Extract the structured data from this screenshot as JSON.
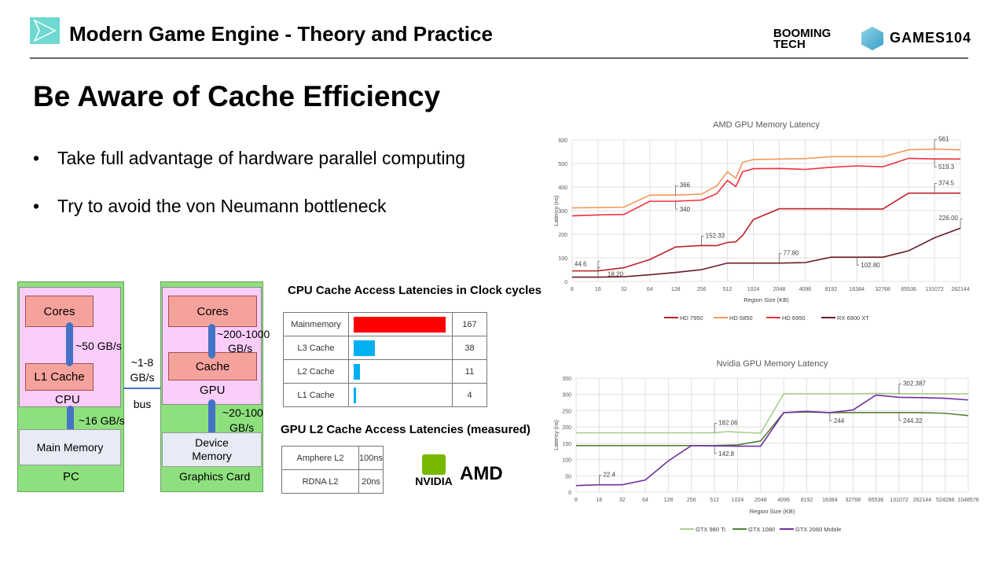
{
  "header": {
    "title": "Modern Game Engine - Theory and Practice",
    "brand_left": "BOOMING TECH",
    "brand_right": "GAMES104"
  },
  "slide": {
    "heading": "Be Aware of Cache Efficiency",
    "bullets": [
      "Take full advantage of hardware parallel computing",
      "Try to avoid the von Neumann bottleneck"
    ]
  },
  "diagram": {
    "pc": {
      "label": "PC",
      "cpu": "CPU",
      "cores": "Cores",
      "l1": "L1 Cache",
      "main_memory": "Main Memory",
      "bw_core_l1": "~50 GB/s",
      "bw_cpu_mem": "~16 GB/s"
    },
    "gpu": {
      "label": "Graphics Card",
      "gpu": "GPU",
      "cores": "Cores",
      "cache": "Cache",
      "device_memory_1": "Device",
      "device_memory_2": "Memory",
      "bw_core_cache_1": "~200-1000",
      "bw_core_cache_2": "GB/s",
      "bw_gpu_mem_1": "~20-100",
      "bw_gpu_mem_2": "GB/s"
    },
    "bus": {
      "bw_1": "~1-8",
      "bw_2": "GB/s",
      "label": "bus"
    }
  },
  "cpu_table": {
    "title": "CPU  Cache Access Latencies in Clock cycles",
    "rows": [
      {
        "name": "Mainmemory",
        "value": 167,
        "color": "#ff0000"
      },
      {
        "name": "L3 Cache",
        "value": 38,
        "color": "#00b0f0"
      },
      {
        "name": "L2 Cache",
        "value": 11,
        "color": "#00b0f0"
      },
      {
        "name": "L1 Cache",
        "value": 4,
        "color": "#00b0f0"
      }
    ]
  },
  "gpu_table": {
    "title": "GPU L2 Cache Access Latencies (measured)",
    "rows": [
      {
        "name": "Amphere L2",
        "value": "100ns"
      },
      {
        "name": "RDNA L2",
        "value": "20ns"
      }
    ]
  },
  "vendor_logos": {
    "nvidia": "NVIDIA",
    "amd": "AMD"
  },
  "chart_data": [
    {
      "type": "line",
      "title": "AMD GPU Memory Latency",
      "xlabel": "Region Size (KB)",
      "ylabel": "Latency (ns)",
      "ylim": [
        0,
        600
      ],
      "yticks": [
        0,
        100,
        200,
        300,
        400,
        500,
        600
      ],
      "categories": [
        "8",
        "16",
        "32",
        "64",
        "128",
        "256",
        "512",
        "1024",
        "2048",
        "4096",
        "8192",
        "16384",
        "32768",
        "65536",
        "131072",
        "262144"
      ],
      "grid": true,
      "legend": "bottom",
      "series": [
        {
          "name": "HD 7950",
          "color": "#c0202a",
          "points": [
            [
              8,
              44.6
            ],
            [
              16,
              44.6
            ],
            [
              32,
              58
            ],
            [
              64,
              93
            ],
            [
              128,
              146
            ],
            [
              256,
              152.33
            ],
            [
              384,
              152
            ],
            [
              512,
              165
            ],
            [
              640,
              168
            ],
            [
              768,
              195
            ],
            [
              1024,
              262
            ],
            [
              2048,
              308
            ],
            [
              4096,
              308
            ],
            [
              8192,
              308
            ],
            [
              16384,
              307
            ],
            [
              32768,
              307
            ],
            [
              65536,
              374.5
            ],
            [
              131072,
              374.5
            ],
            [
              262144,
              374.5
            ]
          ]
        },
        {
          "name": "HD 5850",
          "color": "#f0995a",
          "points": [
            [
              8,
              312
            ],
            [
              16,
              313
            ],
            [
              32,
              315
            ],
            [
              64,
              366
            ],
            [
              128,
              366
            ],
            [
              256,
              370
            ],
            [
              384,
              405
            ],
            [
              512,
              465
            ],
            [
              640,
              438
            ],
            [
              768,
              505
            ],
            [
              1024,
              517
            ],
            [
              2048,
              519
            ],
            [
              4096,
              521
            ],
            [
              8192,
              529
            ],
            [
              16384,
              529
            ],
            [
              32768,
              529
            ],
            [
              65536,
              558
            ],
            [
              131072,
              561
            ],
            [
              262144,
              558
            ]
          ]
        },
        {
          "name": "HD 6950",
          "color": "#f0303a",
          "points": [
            [
              8,
              278
            ],
            [
              16,
              282
            ],
            [
              32,
              284
            ],
            [
              64,
              340
            ],
            [
              128,
              340
            ],
            [
              256,
              345
            ],
            [
              384,
              372
            ],
            [
              512,
              428
            ],
            [
              640,
              402
            ],
            [
              768,
              465
            ],
            [
              1024,
              478
            ],
            [
              2048,
              479
            ],
            [
              4096,
              475
            ],
            [
              8192,
              484
            ],
            [
              16384,
              490
            ],
            [
              32768,
              486
            ],
            [
              65536,
              522
            ],
            [
              131072,
              519.3
            ],
            [
              262144,
              519
            ]
          ]
        },
        {
          "name": "RX 6900 XT",
          "color": "#6a1c28",
          "points": [
            [
              8,
              18.2
            ],
            [
              16,
              18.2
            ],
            [
              32,
              20
            ],
            [
              64,
              28
            ],
            [
              128,
              38
            ],
            [
              256,
              50
            ],
            [
              512,
              77.8
            ],
            [
              1024,
              77.8
            ],
            [
              2048,
              77.8
            ],
            [
              4096,
              80
            ],
            [
              8192,
              102.8
            ],
            [
              16384,
              102.8
            ],
            [
              32768,
              102.8
            ],
            [
              65536,
              130
            ],
            [
              131072,
              185
            ],
            [
              262144,
              226
            ]
          ]
        }
      ],
      "annotations": [
        {
          "text": "366",
          "x": 128,
          "y": 366,
          "side": "above"
        },
        {
          "text": "340",
          "x": 128,
          "y": 340,
          "side": "below"
        },
        {
          "text": "561",
          "x": 131072,
          "y": 561,
          "side": "above"
        },
        {
          "text": "519.3",
          "x": 131072,
          "y": 519.3,
          "side": "below"
        },
        {
          "text": "374.5",
          "x": 131072,
          "y": 374.5,
          "side": "above"
        },
        {
          "text": "226.00",
          "x": 262144,
          "y": 226,
          "side": "left-above"
        },
        {
          "text": "152.33",
          "x": 256,
          "y": 152.33,
          "side": "above"
        },
        {
          "text": "44.6",
          "x": 16,
          "y": 44.6,
          "side": "above-left"
        },
        {
          "text": "18.20",
          "x": 16,
          "y": 18.2,
          "side": "right"
        },
        {
          "text": "77.80",
          "x": 2048,
          "y": 77.8,
          "side": "above"
        },
        {
          "text": "102.80",
          "x": 16384,
          "y": 102.8,
          "side": "below"
        }
      ]
    },
    {
      "type": "line",
      "title": "Nvidia GPU Memory Latency",
      "xlabel": "Region Size (KB)",
      "ylabel": "Latency (ns)",
      "ylim": [
        0,
        350
      ],
      "yticks": [
        0,
        50,
        100,
        150,
        200,
        250,
        300,
        350
      ],
      "categories": [
        "8",
        "16",
        "32",
        "64",
        "128",
        "256",
        "512",
        "1024",
        "2048",
        "4096",
        "8192",
        "16384",
        "32768",
        "65536",
        "131072",
        "262144",
        "524288",
        "1048576"
      ],
      "grid": true,
      "legend": "bottom",
      "series": [
        {
          "name": "GTX 980 Ti",
          "color": "#a9d18e",
          "points": [
            [
              8,
              182.06
            ],
            [
              16,
              182
            ],
            [
              32,
              182
            ],
            [
              64,
              182
            ],
            [
              128,
              182
            ],
            [
              256,
              182
            ],
            [
              512,
              182.06
            ],
            [
              768,
              186
            ],
            [
              1024,
              184
            ],
            [
              2048,
              181
            ],
            [
              4096,
              302
            ],
            [
              8192,
              302
            ],
            [
              16384,
              302
            ],
            [
              32768,
              302
            ],
            [
              65536,
              303
            ],
            [
              131072,
              302.387
            ],
            [
              262144,
              302
            ],
            [
              524288,
              302
            ],
            [
              1048576,
              302
            ]
          ]
        },
        {
          "name": "GTX 1080",
          "color": "#548235",
          "points": [
            [
              8,
              142.8
            ],
            [
              16,
              142.8
            ],
            [
              32,
              142.8
            ],
            [
              64,
              142.8
            ],
            [
              128,
              142.8
            ],
            [
              256,
              142.8
            ],
            [
              512,
              142.8
            ],
            [
              1024,
              145
            ],
            [
              2048,
              157
            ],
            [
              4096,
              244
            ],
            [
              8192,
              246
            ],
            [
              16384,
              244
            ],
            [
              32768,
              244.32
            ],
            [
              65536,
              244.32
            ],
            [
              131072,
              244.32
            ],
            [
              262144,
              244
            ],
            [
              524288,
              242
            ],
            [
              1048576,
              235
            ]
          ]
        },
        {
          "name": "GTX 2060 Mobile",
          "color": "#7030a0",
          "points": [
            [
              8,
              20
            ],
            [
              16,
              22.4
            ],
            [
              32,
              22.4
            ],
            [
              64,
              37
            ],
            [
              128,
              96
            ],
            [
              256,
              142.8
            ],
            [
              512,
              142
            ],
            [
              1024,
              141
            ],
            [
              2048,
              141
            ],
            [
              4096,
              244
            ],
            [
              8192,
              248
            ],
            [
              16384,
              244
            ],
            [
              32768,
              252
            ],
            [
              65536,
              298
            ],
            [
              131072,
              291
            ],
            [
              262144,
              290
            ],
            [
              524288,
              288
            ],
            [
              1048576,
              283
            ]
          ]
        }
      ],
      "annotations": [
        {
          "text": "182.06",
          "x": 512,
          "y": 182.06,
          "side": "above"
        },
        {
          "text": "142.8",
          "x": 512,
          "y": 142.8,
          "side": "below"
        },
        {
          "text": "22.4",
          "x": 16,
          "y": 22.4,
          "side": "above"
        },
        {
          "text": "244",
          "x": 16384,
          "y": 244,
          "side": "below"
        },
        {
          "text": "302.387",
          "x": 131072,
          "y": 302.387,
          "side": "above"
        },
        {
          "text": "244.32",
          "x": 131072,
          "y": 244.32,
          "side": "below"
        }
      ]
    }
  ]
}
